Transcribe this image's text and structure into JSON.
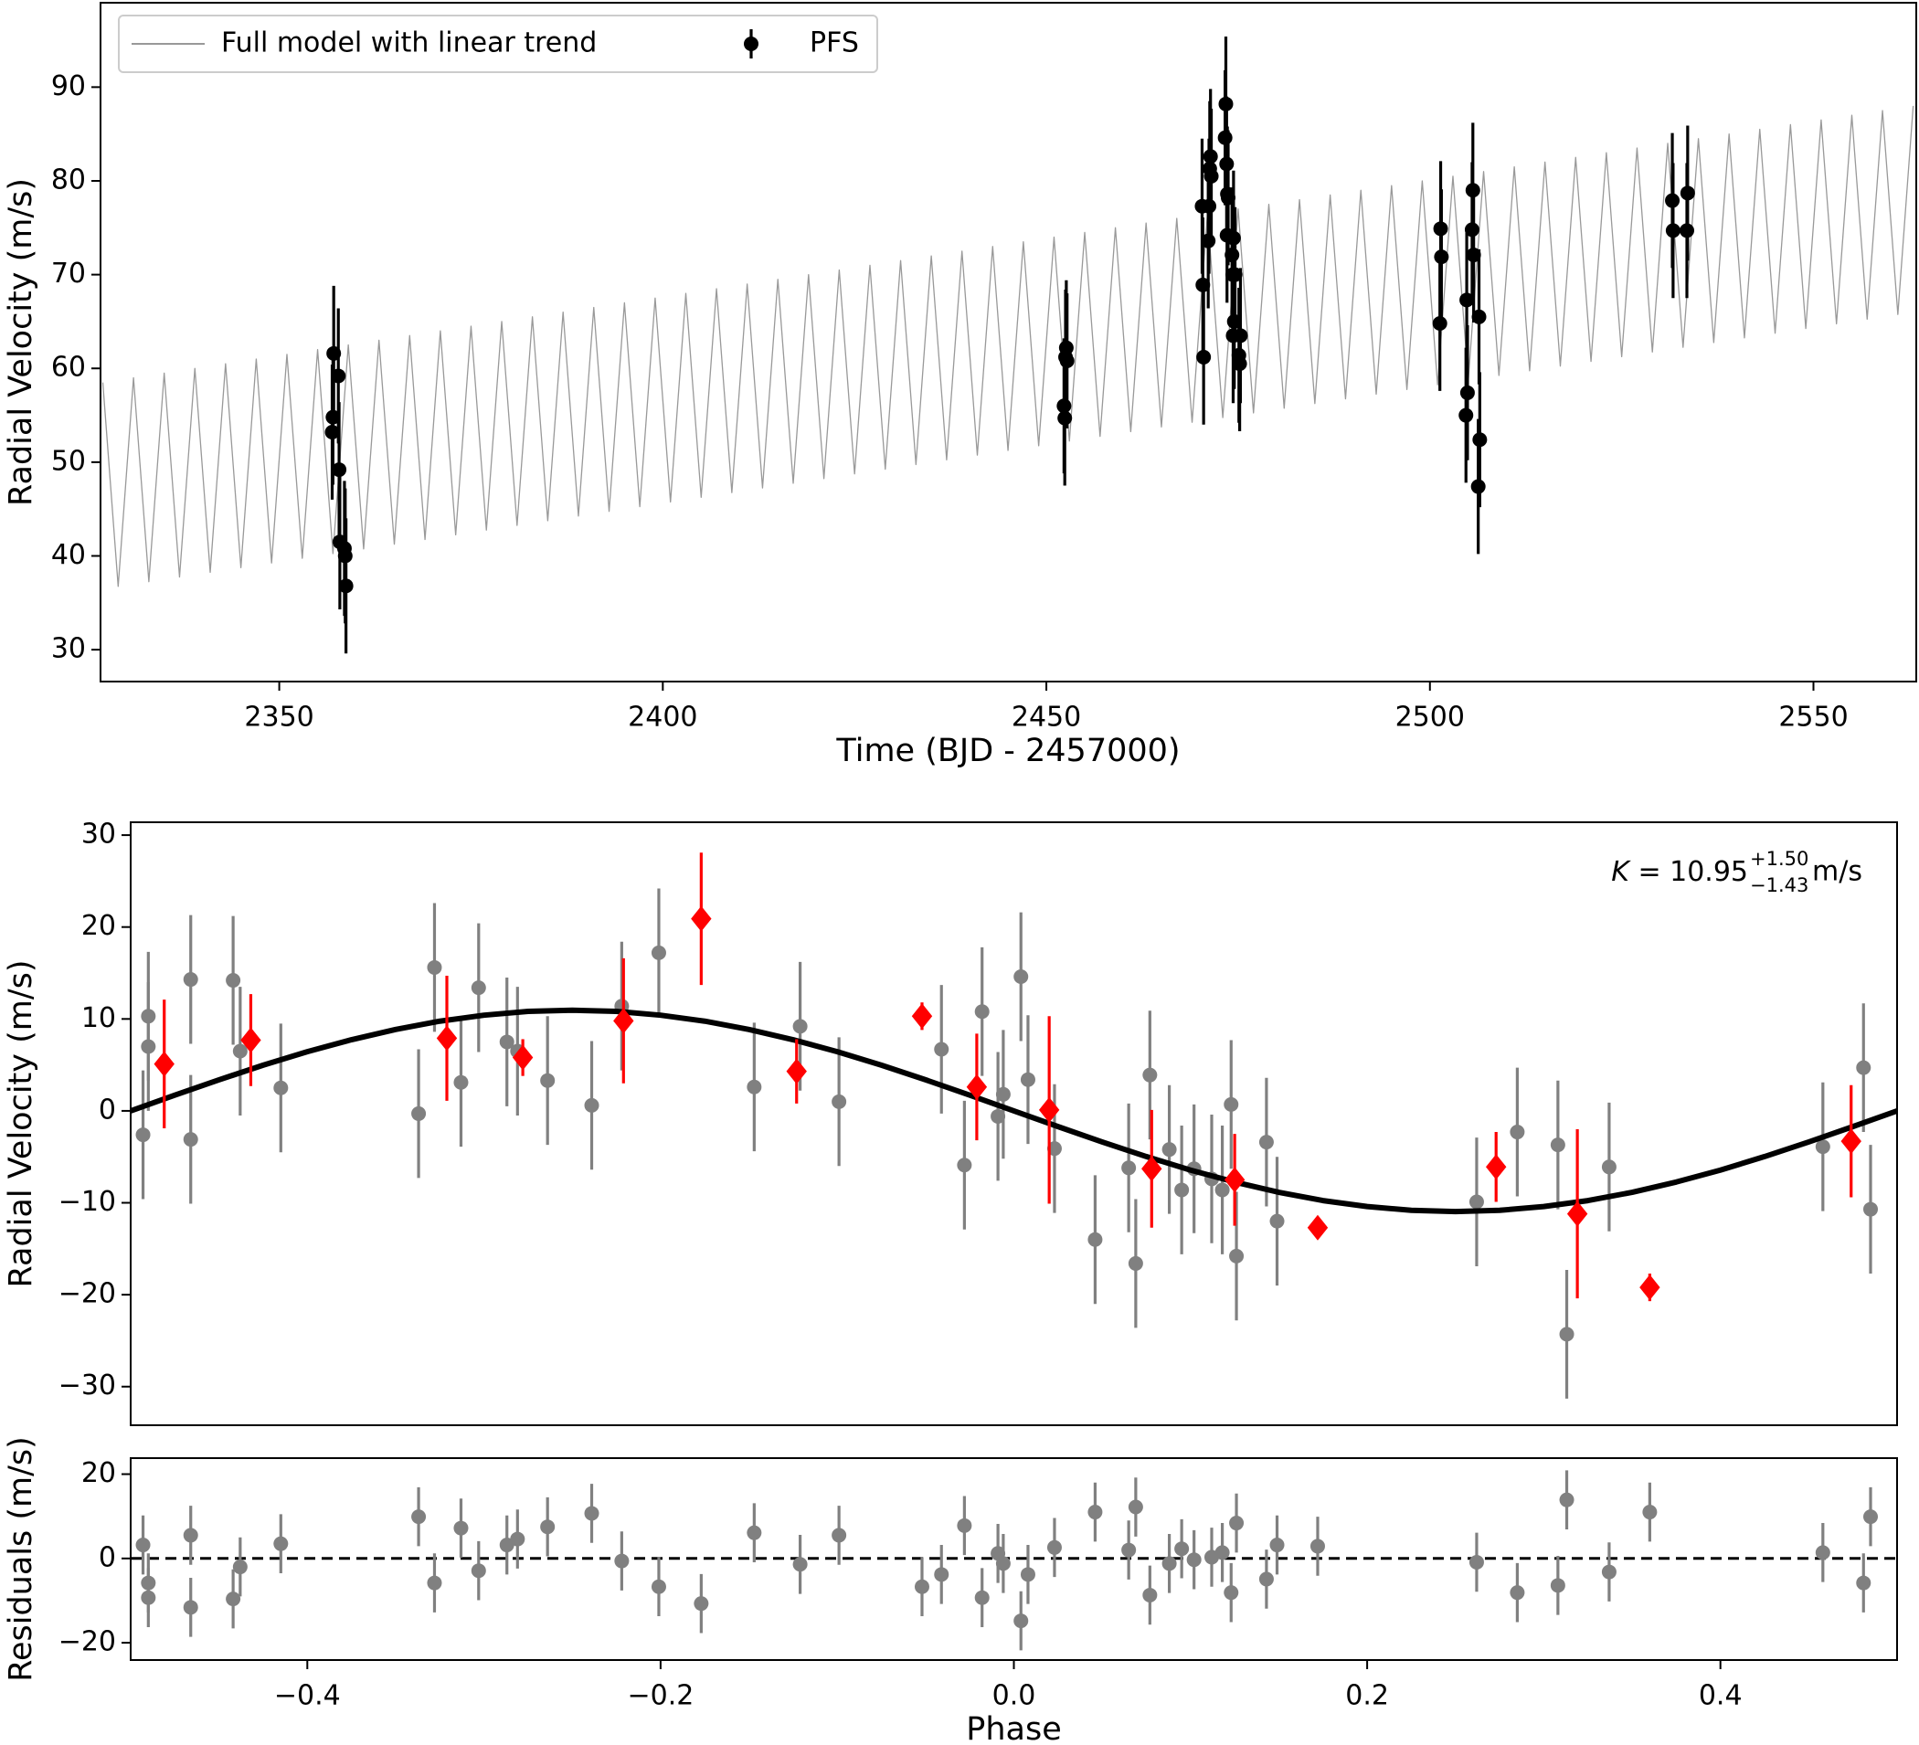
{
  "chart_data": [
    {
      "type": "errorbar",
      "xlabel": "Time (BJD - 2457000)",
      "ylabel": "Radial Velocity (m/s)",
      "xlim": [
        2326.7,
        2563.4
      ],
      "ylim": [
        26.6,
        99
      ],
      "xticks": [
        2350,
        2400,
        2450,
        2500,
        2550
      ],
      "yticks": [
        30,
        40,
        50,
        60,
        70,
        80,
        90
      ],
      "legend": "upper left",
      "series": [
        {
          "name": "Full model with linear trend",
          "color": "#999999",
          "x": [
            2327,
            2329,
            2331,
            2333,
            2335,
            2337,
            2339,
            2341,
            2343,
            2345,
            2347,
            2349,
            2351,
            2353,
            2355,
            2357,
            2359,
            2361,
            2363,
            2365,
            2367,
            2369,
            2371,
            2373,
            2375,
            2377,
            2379,
            2381,
            2383,
            2385,
            2387,
            2389,
            2391,
            2393,
            2395,
            2397,
            2399,
            2401,
            2403,
            2405,
            2407,
            2409,
            2411,
            2413,
            2415,
            2417,
            2419,
            2421,
            2423,
            2425,
            2427,
            2429,
            2431,
            2433,
            2435,
            2437,
            2439,
            2441,
            2443,
            2445,
            2447,
            2449,
            2451,
            2453,
            2455,
            2457,
            2459,
            2461,
            2463,
            2465,
            2467,
            2469,
            2471,
            2473,
            2475,
            2477,
            2479,
            2481,
            2483,
            2485,
            2487,
            2489,
            2491,
            2493,
            2495,
            2497,
            2499,
            2501,
            2503,
            2505,
            2507,
            2509,
            2511,
            2513,
            2515,
            2517,
            2519,
            2521,
            2523,
            2525,
            2527,
            2529,
            2531,
            2533,
            2535,
            2537,
            2539,
            2541,
            2543,
            2545,
            2547,
            2549,
            2551,
            2553,
            2555,
            2557,
            2559,
            2561,
            2563
          ],
          "values": [
            58.5,
            36.75,
            59,
            37.25,
            59.5,
            37.75,
            60,
            38.25,
            60.5,
            38.75,
            61,
            39.25,
            61.5,
            39.75,
            62,
            40.25,
            62.5,
            40.75,
            63,
            41.25,
            63.5,
            41.75,
            64,
            42.25,
            64.5,
            42.75,
            65,
            43.25,
            65.5,
            43.75,
            66,
            44.25,
            66.5,
            44.75,
            67,
            45.25,
            67.5,
            45.75,
            68,
            46.25,
            68.5,
            46.75,
            69,
            47.25,
            69.5,
            47.75,
            70,
            48.25,
            70.5,
            48.75,
            71,
            49.25,
            71.5,
            49.75,
            72,
            50.25,
            72.5,
            50.75,
            73,
            51.25,
            73.5,
            51.75,
            74,
            52.25,
            74.5,
            52.75,
            75,
            53.25,
            75.5,
            53.75,
            76,
            54.25,
            76.5,
            54.75,
            77,
            55.25,
            77.5,
            55.75,
            78,
            56.25,
            78.5,
            56.75,
            79,
            57.25,
            79.5,
            57.75,
            80,
            58.25,
            80.5,
            58.75,
            81,
            59.25,
            81.5,
            59.75,
            82,
            60.25,
            82.5,
            60.75,
            83,
            61.25,
            83.5,
            61.75,
            84,
            62.25,
            84.5,
            62.75,
            85,
            63.25,
            85.5,
            63.75,
            86,
            64.25,
            86.5,
            64.75,
            87,
            65.25,
            87.5,
            65.75,
            88
          ]
        },
        {
          "name": "PFS",
          "color": "#000000",
          "marker": "circle",
          "x": [
            2356.9,
            2357.0,
            2357.1,
            2357.7,
            2357.8,
            2357.9,
            2358.5,
            2358.6,
            2358.7,
            2452.3,
            2452.4,
            2452.5,
            2452.6,
            2452.7,
            2470.3,
            2470.4,
            2470.5,
            2471.1,
            2471.2,
            2471.3,
            2471.4,
            2471.5,
            2473.3,
            2473.4,
            2473.5,
            2473.55,
            2473.6,
            2473.7,
            2474.2,
            2474.3,
            2474.35,
            2474.4,
            2474.5,
            2474.6,
            2475.1,
            2475.2,
            2475.3,
            2501.3,
            2501.4,
            2501.5,
            2504.7,
            2504.8,
            2504.9,
            2505.5,
            2505.6,
            2505.7,
            2506.3,
            2506.4,
            2506.5,
            2531.6,
            2531.7,
            2533.5,
            2533.6
          ],
          "values": [
            53.2,
            54.8,
            61.6,
            59.2,
            49.2,
            41.5,
            40.8,
            40.0,
            36.8,
            56.0,
            54.7,
            61.2,
            62.2,
            60.8,
            77.3,
            68.9,
            61.2,
            73.6,
            77.3,
            81.3,
            82.6,
            80.5,
            84.6,
            88.2,
            81.8,
            74.2,
            78.6,
            78.2,
            72.1,
            70.0,
            63.5,
            73.9,
            65.0,
            70.0,
            61.4,
            60.5,
            63.5,
            64.8,
            74.9,
            71.9,
            55.0,
            67.3,
            57.4,
            74.8,
            79.0,
            72.1,
            47.4,
            65.5,
            52.4,
            77.9,
            74.7,
            74.7,
            78.7
          ],
          "errors": [
            7.2,
            7.2,
            7.2,
            7.2,
            7.2,
            7.2,
            7.2,
            7.2,
            7.2,
            7.2,
            7.2,
            7.2,
            7.2,
            7.2,
            7.2,
            7.2,
            7.2,
            7.2,
            7.2,
            7.2,
            7.2,
            7.2,
            7.2,
            7.2,
            7.2,
            7.2,
            7.2,
            7.2,
            7.2,
            7.2,
            7.2,
            7.2,
            7.2,
            7.2,
            7.2,
            7.2,
            7.2,
            7.2,
            7.2,
            7.2,
            7.2,
            7.2,
            7.2,
            7.2,
            7.2,
            7.2,
            7.2,
            7.2,
            7.2,
            7.2,
            7.2,
            7.2,
            7.2
          ]
        }
      ]
    },
    {
      "type": "errorbar",
      "ylabel": "Radial Velocity (m/s)",
      "xlim": [
        -0.5,
        0.5
      ],
      "ylim": [
        -34.2,
        31.4
      ],
      "yticks": [
        {
          "value": -30,
          "label": "−30"
        },
        {
          "value": -20,
          "label": "−20"
        },
        {
          "value": -10,
          "label": "−10"
        },
        0,
        10,
        20,
        30
      ],
      "annotation": {
        "symbol": "K",
        "value": " = 10.95",
        "plus": "+1.50",
        "minus": "−1.43",
        "unit": "m/s"
      },
      "series": [
        {
          "color": "#808080",
          "marker": "circle",
          "x": [
            -0.493,
            -0.49,
            -0.49,
            -0.466,
            -0.466,
            -0.442,
            -0.438,
            -0.415,
            -0.337,
            -0.328,
            -0.313,
            -0.303,
            -0.287,
            -0.281,
            -0.264,
            -0.239,
            -0.222,
            -0.201,
            -0.147,
            -0.121,
            -0.099,
            -0.041,
            -0.028,
            -0.018,
            -0.009,
            -0.006,
            0.004,
            0.008,
            0.023,
            0.046,
            0.065,
            0.069,
            0.077,
            0.088,
            0.095,
            0.102,
            0.112,
            0.118,
            0.123,
            0.126,
            0.143,
            0.149,
            0.262,
            0.285,
            0.308,
            0.313,
            0.337,
            0.458,
            0.481,
            0.485
          ],
          "values": [
            -2.6,
            10.3,
            7.0,
            14.3,
            -3.1,
            14.2,
            6.5,
            2.5,
            -0.3,
            15.6,
            3.1,
            13.4,
            7.5,
            6.5,
            3.3,
            0.6,
            11.4,
            17.2,
            2.6,
            9.2,
            1.0,
            6.7,
            -5.9,
            10.8,
            -0.6,
            1.8,
            14.6,
            3.4,
            -4.1,
            -14.0,
            -6.2,
            -16.6,
            3.9,
            -4.2,
            -8.6,
            -6.3,
            -7.4,
            -8.6,
            0.7,
            -15.8,
            -3.4,
            -12.0,
            -9.9,
            -2.3,
            -3.7,
            -24.3,
            -6.1,
            -3.9,
            4.7,
            -10.7
          ],
          "errors": [
            7,
            7,
            7,
            7,
            7,
            7,
            7,
            7,
            7,
            7,
            7,
            7,
            7,
            7,
            7,
            7,
            7,
            7,
            7,
            7,
            7,
            7,
            7,
            7,
            7,
            7,
            7,
            7,
            7,
            7,
            7,
            7,
            7,
            7,
            7,
            7,
            7,
            7,
            7,
            7,
            7,
            7,
            7,
            7,
            7,
            7,
            7,
            7,
            7,
            7
          ]
        },
        {
          "color": "#000000",
          "x": [
            -0.5,
            -0.475,
            -0.45,
            -0.425,
            -0.4,
            -0.375,
            -0.35,
            -0.325,
            -0.3,
            -0.275,
            -0.25,
            -0.225,
            -0.2,
            -0.175,
            -0.15,
            -0.125,
            -0.1,
            -0.075,
            -0.05,
            -0.025,
            0,
            0.025,
            0.05,
            0.075,
            0.1,
            0.125,
            0.15,
            0.175,
            0.2,
            0.225,
            0.25,
            0.275,
            0.3,
            0.325,
            0.35,
            0.375,
            0.4,
            0.425,
            0.45,
            0.475,
            0.5
          ],
          "values": [
            0,
            1.71,
            3.38,
            4.97,
            6.44,
            7.74,
            8.86,
            9.76,
            10.41,
            10.82,
            10.95,
            10.82,
            10.41,
            9.76,
            8.86,
            7.74,
            6.44,
            4.97,
            3.38,
            1.71,
            0,
            -1.71,
            -3.38,
            -4.97,
            -6.44,
            -7.74,
            -8.86,
            -9.76,
            -10.41,
            -10.82,
            -10.95,
            -10.82,
            -10.41,
            -9.76,
            -8.86,
            -7.74,
            -6.44,
            -4.97,
            -3.38,
            -1.71,
            0
          ]
        },
        {
          "color": "#ff0000",
          "marker": "diamond",
          "x": [
            -0.481,
            -0.432,
            -0.321,
            -0.278,
            -0.221,
            -0.177,
            -0.123,
            -0.052,
            -0.021,
            0.02,
            0.078,
            0.125,
            0.172,
            0.273,
            0.319,
            0.36,
            0.474
          ],
          "values": [
            5.1,
            7.7,
            7.9,
            5.8,
            9.8,
            20.9,
            4.3,
            10.3,
            2.6,
            0.1,
            -6.3,
            -7.5,
            -12.7,
            -6.1,
            -11.2,
            -19.2,
            -3.3
          ],
          "errors": [
            7,
            5,
            6.8,
            2,
            6.8,
            7.2,
            3.5,
            1.5,
            5.8,
            10.2,
            6.4,
            5,
            1,
            3.8,
            9.2,
            1.5,
            6.1
          ]
        }
      ]
    },
    {
      "type": "errorbar",
      "xlabel": "Phase",
      "ylabel": "Residuals (m/s)",
      "xlim": [
        -0.5,
        0.5
      ],
      "ylim": [
        -24.1,
        23.8
      ],
      "xticks": [
        {
          "value": -0.4,
          "label": "−0.4"
        },
        {
          "value": -0.2,
          "label": "−0.2"
        },
        {
          "value": 0,
          "label": "0.0"
        },
        0.2,
        0.4
      ],
      "yticks": [
        {
          "value": -20,
          "label": "−20"
        },
        0,
        20
      ],
      "hline": 0,
      "series": [
        {
          "color": "#808080",
          "marker": "circle",
          "x": [
            -0.493,
            -0.49,
            -0.49,
            -0.466,
            -0.466,
            -0.442,
            -0.438,
            -0.415,
            -0.337,
            -0.328,
            -0.313,
            -0.303,
            -0.287,
            -0.281,
            -0.264,
            -0.239,
            -0.222,
            -0.201,
            -0.177,
            -0.147,
            -0.121,
            -0.099,
            -0.052,
            -0.041,
            -0.028,
            -0.018,
            -0.009,
            -0.006,
            0.004,
            0.008,
            0.023,
            0.046,
            0.065,
            0.069,
            0.077,
            0.088,
            0.095,
            0.102,
            0.112,
            0.118,
            0.123,
            0.126,
            0.143,
            0.149,
            0.172,
            0.262,
            0.285,
            0.308,
            0.313,
            0.337,
            0.36,
            0.458,
            0.481,
            0.485
          ],
          "values": [
            3.2,
            -5.8,
            -9.3,
            5.5,
            -11.6,
            -9.6,
            -2.0,
            3.5,
            9.9,
            -5.8,
            7.2,
            -2.9,
            3.2,
            4.6,
            7.5,
            10.7,
            -0.6,
            -6.7,
            -10.7,
            6.1,
            -1.4,
            5.5,
            -6.7,
            -3.8,
            7.8,
            -9.3,
            1.2,
            -1.2,
            -14.8,
            -3.8,
            2.6,
            11.0,
            2.0,
            12.2,
            -8.7,
            -1.2,
            2.3,
            -0.3,
            0.3,
            1.4,
            -8.1,
            8.4,
            -4.9,
            3.2,
            2.9,
            -0.9,
            -8.1,
            -6.4,
            13.9,
            -3.2,
            11.0,
            1.4,
            -5.8,
            9.9
          ],
          "errors": [
            7,
            7,
            7,
            7,
            7,
            7,
            7,
            7,
            7,
            7,
            7,
            7,
            7,
            7,
            7,
            7,
            7,
            7,
            7,
            7,
            7,
            7,
            7,
            7,
            7,
            7,
            7,
            7,
            7,
            7,
            7,
            7,
            7,
            7,
            7,
            7,
            7,
            7,
            7,
            7,
            7,
            7,
            7,
            7,
            7,
            7,
            7,
            7,
            7,
            7,
            7,
            7,
            7,
            7
          ]
        }
      ]
    }
  ]
}
